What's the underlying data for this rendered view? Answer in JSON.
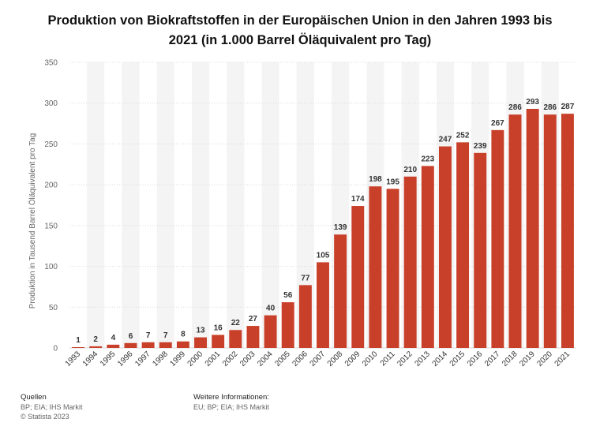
{
  "chart_data": {
    "type": "bar",
    "title": "Produktion von Biokraftstoffen in der Europäischen Union in den Jahren 1993 bis 2021 (in 1.000 Barrel Öläquivalent pro Tag)",
    "xlabel": "",
    "ylabel": "Produktion in Tausend Barrel Öläquivalent pro Tag",
    "ylim": [
      0,
      350
    ],
    "yticks": [
      0,
      50,
      100,
      150,
      200,
      250,
      300,
      350
    ],
    "grid": true,
    "categories": [
      "1993",
      "1994",
      "1995",
      "1996",
      "1997",
      "1998",
      "1999",
      "2000",
      "2001",
      "2002",
      "2003",
      "2004",
      "2005",
      "2006",
      "2007",
      "2008",
      "2009",
      "2010",
      "2011",
      "2012",
      "2013",
      "2014",
      "2015",
      "2016",
      "2017",
      "2018",
      "2019",
      "2020",
      "2021"
    ],
    "values": [
      1,
      2,
      4,
      6,
      7,
      7,
      8,
      13,
      16,
      22,
      27,
      40,
      56,
      77,
      105,
      139,
      174,
      198,
      195,
      210,
      223,
      247,
      252,
      239,
      267,
      286,
      293,
      286,
      287
    ],
    "bar_color": "#c8402a"
  },
  "footer": {
    "sources_heading": "Quellen",
    "sources_text": "BP; EIA; IHS Markit",
    "copyright": "© Statista 2023",
    "more_info_heading": "Weitere Informationen:",
    "more_info_text": "EU; BP; EIA; IHS Markit"
  }
}
